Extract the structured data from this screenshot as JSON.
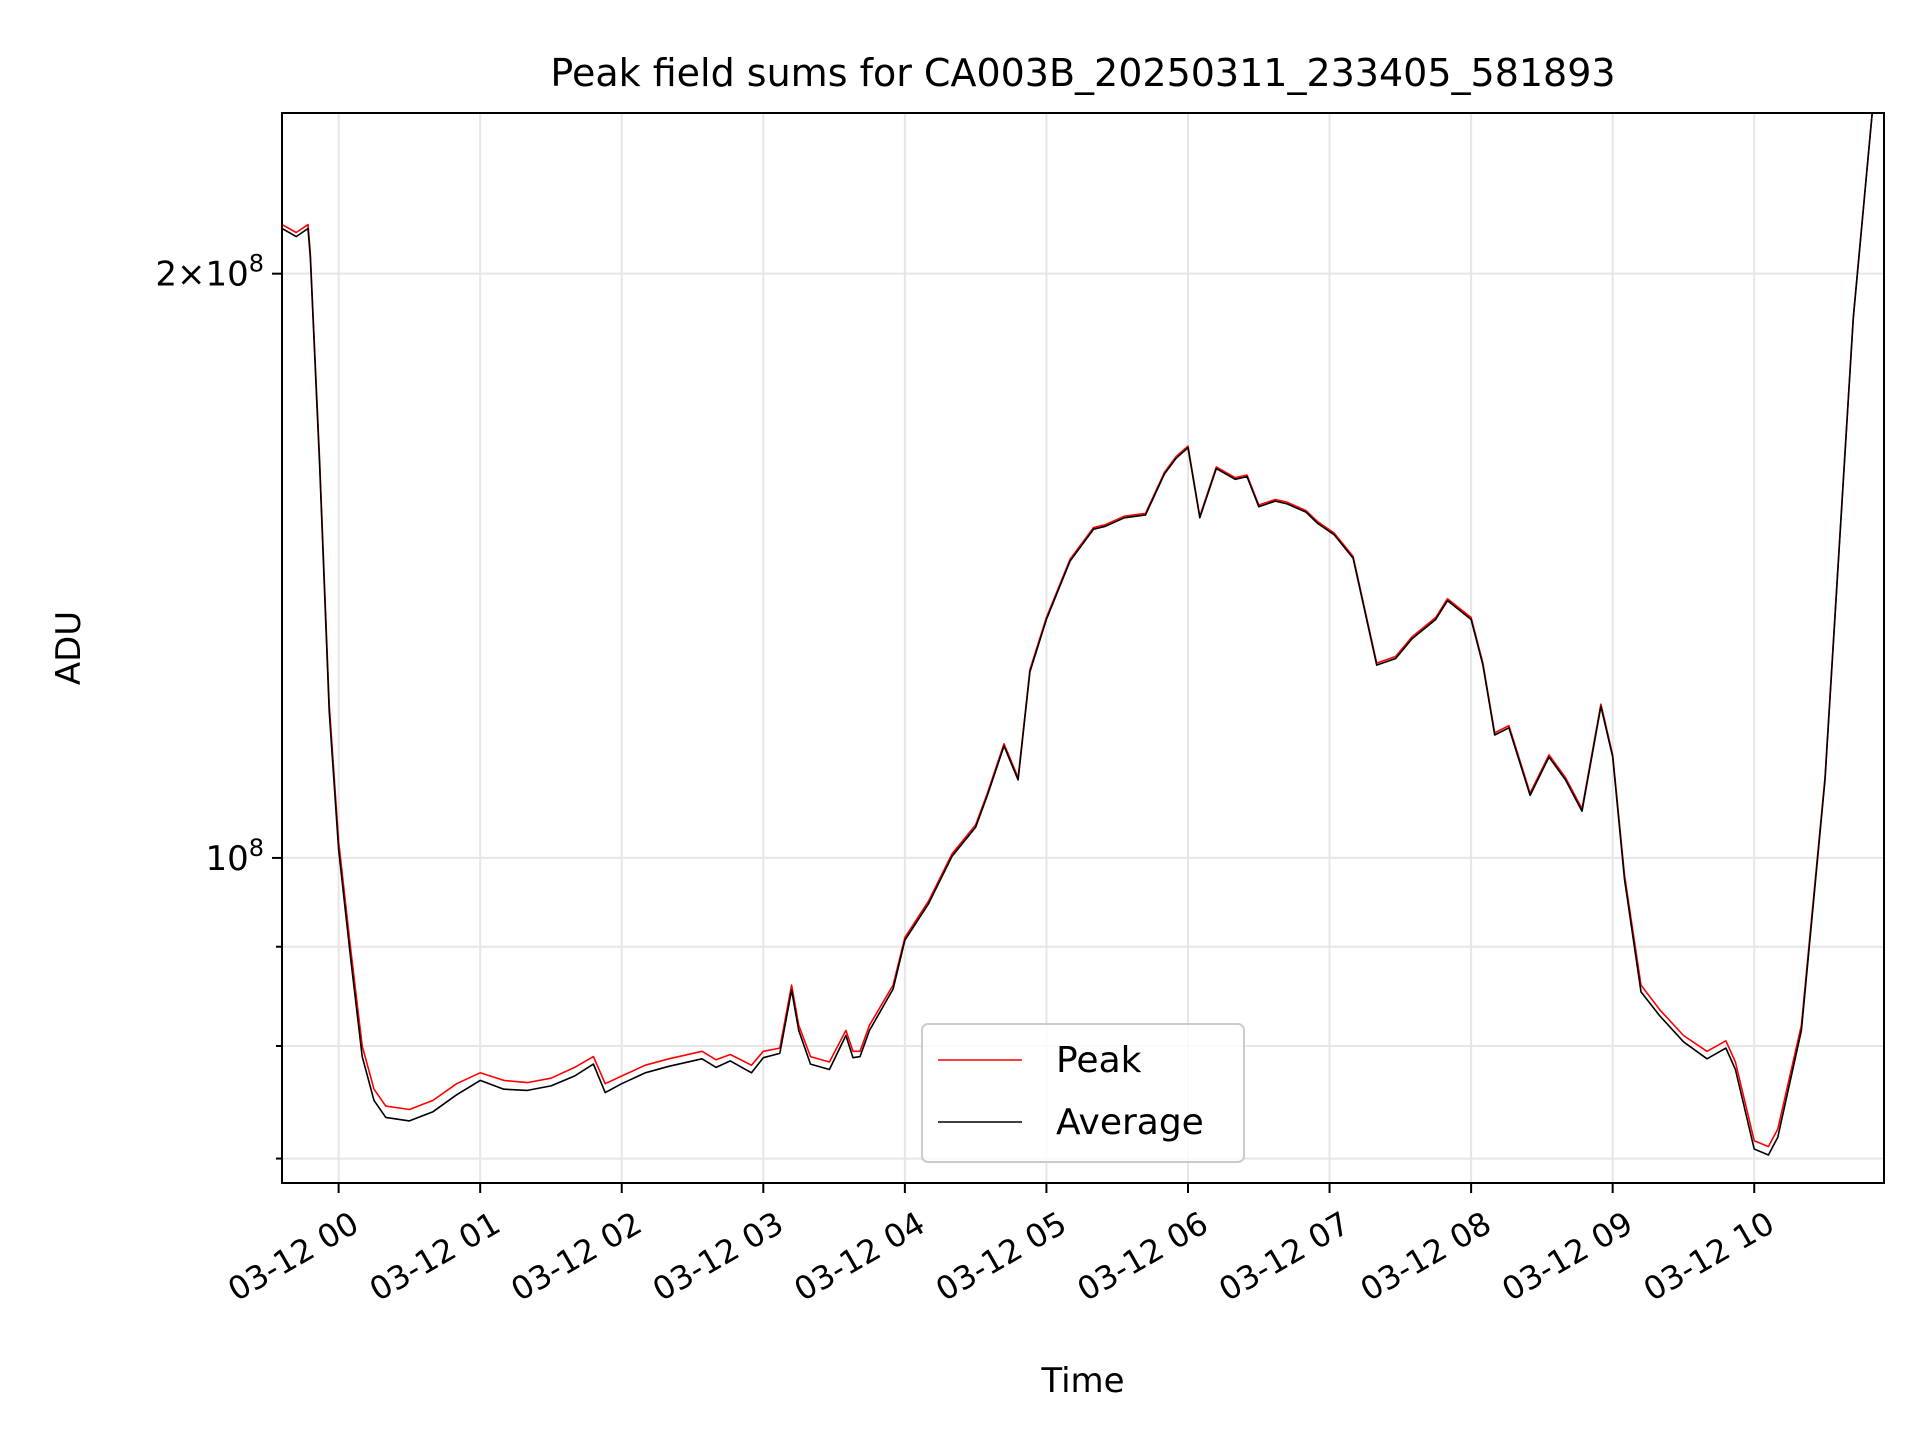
{
  "chart_data": {
    "type": "line",
    "title": "Peak field sums for CA003B_20250311_233405_581893",
    "xlabel": "Time",
    "ylabel": "ADU",
    "y_scale": "log",
    "ylim": [
      68000000,
      242000000
    ],
    "xlim": [
      "03-11 23:36",
      "03-12 10:55"
    ],
    "grid": true,
    "legend_position": "lower-center",
    "x_ticks": [
      "03-12 00",
      "03-12 01",
      "03-12 02",
      "03-12 03",
      "03-12 04",
      "03-12 05",
      "03-12 06",
      "03-12 07",
      "03-12 08",
      "03-12 09",
      "03-12 10"
    ],
    "y_ticks": [
      {
        "value": 100000000,
        "base": "10",
        "exp": "8",
        "coef": ""
      },
      {
        "value": 200000000,
        "base": "10",
        "exp": "8",
        "coef": "2"
      }
    ],
    "series": [
      {
        "name": "Peak",
        "color": "#ff0000",
        "x": [
          "03-11 23:36",
          "03-11 23:42",
          "03-11 23:47",
          "03-11 23:48",
          "03-11 23:52",
          "03-11 23:56",
          "03-12 00:00",
          "03-12 00:05",
          "03-12 00:10",
          "03-12 00:15",
          "03-12 00:20",
          "03-12 00:30",
          "03-12 00:40",
          "03-12 00:50",
          "03-12 01:00",
          "03-12 01:10",
          "03-12 01:20",
          "03-12 01:30",
          "03-12 01:40",
          "03-12 01:48",
          "03-12 01:53",
          "03-12 02:00",
          "03-12 02:10",
          "03-12 02:20",
          "03-12 02:34",
          "03-12 02:40",
          "03-12 02:46",
          "03-12 02:55",
          "03-12 03:00",
          "03-12 03:07",
          "03-12 03:12",
          "03-12 03:15",
          "03-12 03:20",
          "03-12 03:28",
          "03-12 03:35",
          "03-12 03:38",
          "03-12 03:41",
          "03-12 03:45",
          "03-12 03:55",
          "03-12 04:00",
          "03-12 04:10",
          "03-12 04:20",
          "03-12 04:30",
          "03-12 04:35",
          "03-12 04:42",
          "03-12 04:48",
          "03-12 04:53",
          "03-12 05:00",
          "03-12 05:10",
          "03-12 05:20",
          "03-12 05:25",
          "03-12 05:33",
          "03-12 05:42",
          "03-12 05:50",
          "03-12 05:55",
          "03-12 06:00",
          "03-12 06:05",
          "03-12 06:12",
          "03-12 06:20",
          "03-12 06:25",
          "03-12 06:30",
          "03-12 06:37",
          "03-12 06:42",
          "03-12 06:50",
          "03-12 06:55",
          "03-12 07:02",
          "03-12 07:10",
          "03-12 07:20",
          "03-12 07:28",
          "03-12 07:35",
          "03-12 07:45",
          "03-12 07:50",
          "03-12 08:00",
          "03-12 08:05",
          "03-12 08:10",
          "03-12 08:16",
          "03-12 08:25",
          "03-12 08:33",
          "03-12 08:40",
          "03-12 08:47",
          "03-12 08:55",
          "03-12 09:00",
          "03-12 09:05",
          "03-12 09:12",
          "03-12 09:20",
          "03-12 09:30",
          "03-12 09:40",
          "03-12 09:48",
          "03-12 09:52",
          "03-12 10:00",
          "03-12 10:06",
          "03-12 10:10",
          "03-12 10:20",
          "03-12 10:30",
          "03-12 10:42",
          "03-12 10:50"
        ],
        "y": [
          212000000,
          210000000,
          212000000,
          205000000,
          160000000,
          120000000,
          102000000,
          90000000,
          80000000,
          76000000,
          74500000,
          74200000,
          75000000,
          76500000,
          77500000,
          76800000,
          76600000,
          77000000,
          78000000,
          79000000,
          76500000,
          77200000,
          78200000,
          78800000,
          79500000,
          78700000,
          79200000,
          78200000,
          79500000,
          79800000,
          86000000,
          82000000,
          79000000,
          78500000,
          81500000,
          79500000,
          79500000,
          82000000,
          86000000,
          91000000,
          95000000,
          100500000,
          104000000,
          108000000,
          114500000,
          110000000,
          125000000,
          133000000,
          142500000,
          148000000,
          148500000,
          150000000,
          150500000,
          158000000,
          161000000,
          163000000,
          150000000,
          159000000,
          157000000,
          157500000,
          152000000,
          153000000,
          152500000,
          151000000,
          149000000,
          147000000,
          143000000,
          126000000,
          127000000,
          130000000,
          133000000,
          136000000,
          133000000,
          126000000,
          116000000,
          117000000,
          108000000,
          113000000,
          110000000,
          106000000,
          120000000,
          113000000,
          98000000,
          86000000,
          83500000,
          81000000,
          79500000,
          80500000,
          78500000,
          71500000,
          71000000,
          72500000,
          82000000,
          110000000,
          190000000,
          242000000
        ]
      },
      {
        "name": "Average",
        "color": "#000000",
        "x": [
          "03-11 23:36",
          "03-11 23:42",
          "03-11 23:47",
          "03-11 23:48",
          "03-11 23:52",
          "03-11 23:56",
          "03-12 00:00",
          "03-12 00:05",
          "03-12 00:10",
          "03-12 00:15",
          "03-12 00:20",
          "03-12 00:30",
          "03-12 00:40",
          "03-12 00:50",
          "03-12 01:00",
          "03-12 01:10",
          "03-12 01:20",
          "03-12 01:30",
          "03-12 01:40",
          "03-12 01:48",
          "03-12 01:53",
          "03-12 02:00",
          "03-12 02:10",
          "03-12 02:20",
          "03-12 02:34",
          "03-12 02:40",
          "03-12 02:46",
          "03-12 02:55",
          "03-12 03:00",
          "03-12 03:07",
          "03-12 03:12",
          "03-12 03:15",
          "03-12 03:20",
          "03-12 03:28",
          "03-12 03:35",
          "03-12 03:38",
          "03-12 03:41",
          "03-12 03:45",
          "03-12 03:55",
          "03-12 04:00",
          "03-12 04:10",
          "03-12 04:20",
          "03-12 04:30",
          "03-12 04:35",
          "03-12 04:42",
          "03-12 04:48",
          "03-12 04:53",
          "03-12 05:00",
          "03-12 05:10",
          "03-12 05:20",
          "03-12 05:25",
          "03-12 05:33",
          "03-12 05:42",
          "03-12 05:50",
          "03-12 05:55",
          "03-12 06:00",
          "03-12 06:05",
          "03-12 06:12",
          "03-12 06:20",
          "03-12 06:25",
          "03-12 06:30",
          "03-12 06:37",
          "03-12 06:42",
          "03-12 06:50",
          "03-12 06:55",
          "03-12 07:02",
          "03-12 07:10",
          "03-12 07:20",
          "03-12 07:28",
          "03-12 07:35",
          "03-12 07:45",
          "03-12 07:50",
          "03-12 08:00",
          "03-12 08:05",
          "03-12 08:10",
          "03-12 08:16",
          "03-12 08:25",
          "03-12 08:33",
          "03-12 08:40",
          "03-12 08:47",
          "03-12 08:55",
          "03-12 09:00",
          "03-12 09:05",
          "03-12 09:12",
          "03-12 09:20",
          "03-12 09:30",
          "03-12 09:40",
          "03-12 09:48",
          "03-12 09:52",
          "03-12 10:00",
          "03-12 10:06",
          "03-12 10:10",
          "03-12 10:20",
          "03-12 10:30",
          "03-12 10:42",
          "03-12 10:50"
        ],
        "y": [
          211000000,
          209000000,
          211000000,
          204000000,
          159000000,
          119000000,
          101000000,
          89000000,
          79000000,
          75000000,
          73500000,
          73200000,
          74000000,
          75500000,
          76800000,
          76000000,
          75900000,
          76300000,
          77200000,
          78300000,
          75700000,
          76500000,
          77500000,
          78100000,
          78800000,
          78000000,
          78600000,
          77500000,
          78900000,
          79300000,
          85500000,
          81500000,
          78300000,
          77800000,
          81000000,
          78900000,
          79000000,
          81500000,
          85600000,
          90700000,
          94700000,
          100200000,
          103700000,
          107700000,
          114200000,
          109700000,
          124700000,
          132700000,
          142200000,
          147700000,
          148200000,
          149700000,
          150200000,
          157700000,
          160700000,
          162700000,
          149700000,
          158700000,
          156700000,
          157200000,
          151700000,
          152700000,
          152200000,
          150700000,
          148700000,
          146700000,
          142700000,
          125700000,
          126700000,
          129700000,
          132700000,
          135700000,
          132700000,
          125700000,
          115700000,
          116700000,
          107700000,
          112700000,
          109700000,
          105700000,
          119700000,
          112700000,
          97500000,
          85300000,
          82900000,
          80400000,
          78800000,
          79800000,
          77800000,
          70800000,
          70300000,
          71800000,
          81500000,
          109700000,
          189700000,
          242000000
        ]
      }
    ]
  }
}
